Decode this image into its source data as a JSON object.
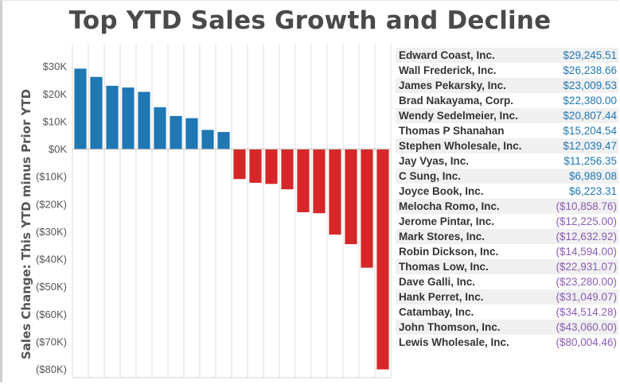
{
  "chart_data": {
    "type": "bar",
    "title": "Top YTD Sales Growth and Decline",
    "ylabel": "Sales Change: This YTD minus Prior YTD",
    "xlabel": "",
    "ylim": [
      -80000,
      30000
    ],
    "yticks": [
      30000,
      20000,
      10000,
      0,
      -10000,
      -20000,
      -30000,
      -40000,
      -50000,
      -60000,
      -70000,
      -80000
    ],
    "ytick_labels": [
      "$30K",
      "$20K",
      "$10K",
      "$0K",
      "($10K)",
      "($20K)",
      "($30K)",
      "($40K)",
      "($50K)",
      "($60K)",
      "($70K)",
      "($80K)"
    ],
    "grid": "vertical",
    "categories": [
      "Edward Coast, Inc.",
      "Wall Frederick, Inc.",
      "James Pekarsky, Inc.",
      "Brad Nakayama, Corp.",
      "Wendy Sedelmeier, Inc.",
      "Thomas P Shanahan",
      "Stephen Wholesale, Inc.",
      "Jay Vyas, Inc.",
      "C Sung, Inc.",
      "Joyce Book, Inc.",
      "Melocha Romo, Inc.",
      "Jerome Pintar, Inc.",
      "Mark Stores, Inc.",
      "Robin Dickson, Inc.",
      "Thomas Low, Inc.",
      "Dave Galli, Inc.",
      "Hank Perret, Inc.",
      "Catambay, Inc.",
      "John Thomson, Inc.",
      "Lewis Wholesale, Inc."
    ],
    "values": [
      29245.51,
      26238.66,
      23009.53,
      22380.0,
      20807.44,
      15204.54,
      12039.47,
      11256.35,
      6989.08,
      6223.31,
      -10858.76,
      -12225.0,
      -12632.92,
      -14594.0,
      -22931.07,
      -23280.0,
      -31049.07,
      -34514.28,
      -43060.0,
      -80004.46
    ],
    "value_labels": [
      "$29,245.51",
      "$26,238.66",
      "$23,009.53",
      "$22,380.00",
      "$20,807.44",
      "$15,204.54",
      "$12,039.47",
      "$11,256.35",
      "$6,989.08",
      "$6,223.31",
      "($10,858.76)",
      "($12,225.00)",
      "($12,632.92)",
      "($14,594.00)",
      "($22,931.07)",
      "($23,280.00)",
      "($31,049.07)",
      "($34,514.28)",
      "($43,060.00)",
      "($80,004.46)"
    ],
    "colors": {
      "positive": "#1f77b4",
      "negative": "#d62728",
      "positive_text": "#1f77b4",
      "negative_text": "#8a5db3"
    }
  }
}
